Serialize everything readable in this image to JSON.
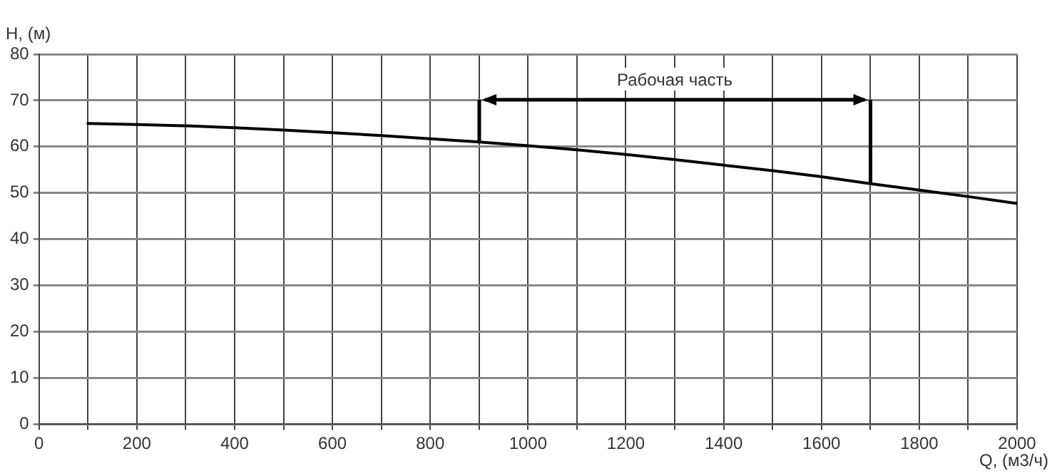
{
  "chart_data": {
    "type": "line",
    "xlabel": "Q, (м3/ч)",
    "ylabel": "H, (м)",
    "x": [
      100,
      200,
      300,
      400,
      500,
      600,
      700,
      800,
      900,
      1000,
      1100,
      1200,
      1300,
      1400,
      1500,
      1600,
      1700,
      1800,
      1900,
      2000
    ],
    "series": [
      {
        "color": "#000000",
        "values": [
          65,
          64.8,
          64.5,
          64.1,
          63.6,
          63,
          62.4,
          61.7,
          61,
          60.2,
          59.3,
          58.3,
          57.2,
          56,
          54.8,
          53.5,
          52,
          50.6,
          49.2,
          47.7
        ]
      }
    ],
    "xlim": [
      0,
      2000
    ],
    "xticks": [
      0,
      {
        "value": 100,
        "label": null
      },
      200,
      {
        "value": 300,
        "label": null
      },
      400,
      {
        "value": 500,
        "label": null
      },
      600,
      {
        "value": 700,
        "label": null
      },
      800,
      {
        "value": 900,
        "label": null
      },
      1000,
      {
        "value": 1100,
        "label": null
      },
      1200,
      {
        "value": 1300,
        "label": null
      },
      1400,
      {
        "value": 1500,
        "label": null
      },
      1600,
      {
        "value": 1700,
        "label": null
      },
      1800,
      {
        "value": 1900,
        "label": null
      },
      2000
    ],
    "ylim": [
      0,
      80
    ],
    "yticks": [
      0,
      10,
      20,
      30,
      40,
      50,
      60,
      70,
      80
    ],
    "grid": true,
    "legend": false,
    "marker": "none",
    "line_style": "solid",
    "annotations": [
      "Рабочая часть"
    ]
  }
}
